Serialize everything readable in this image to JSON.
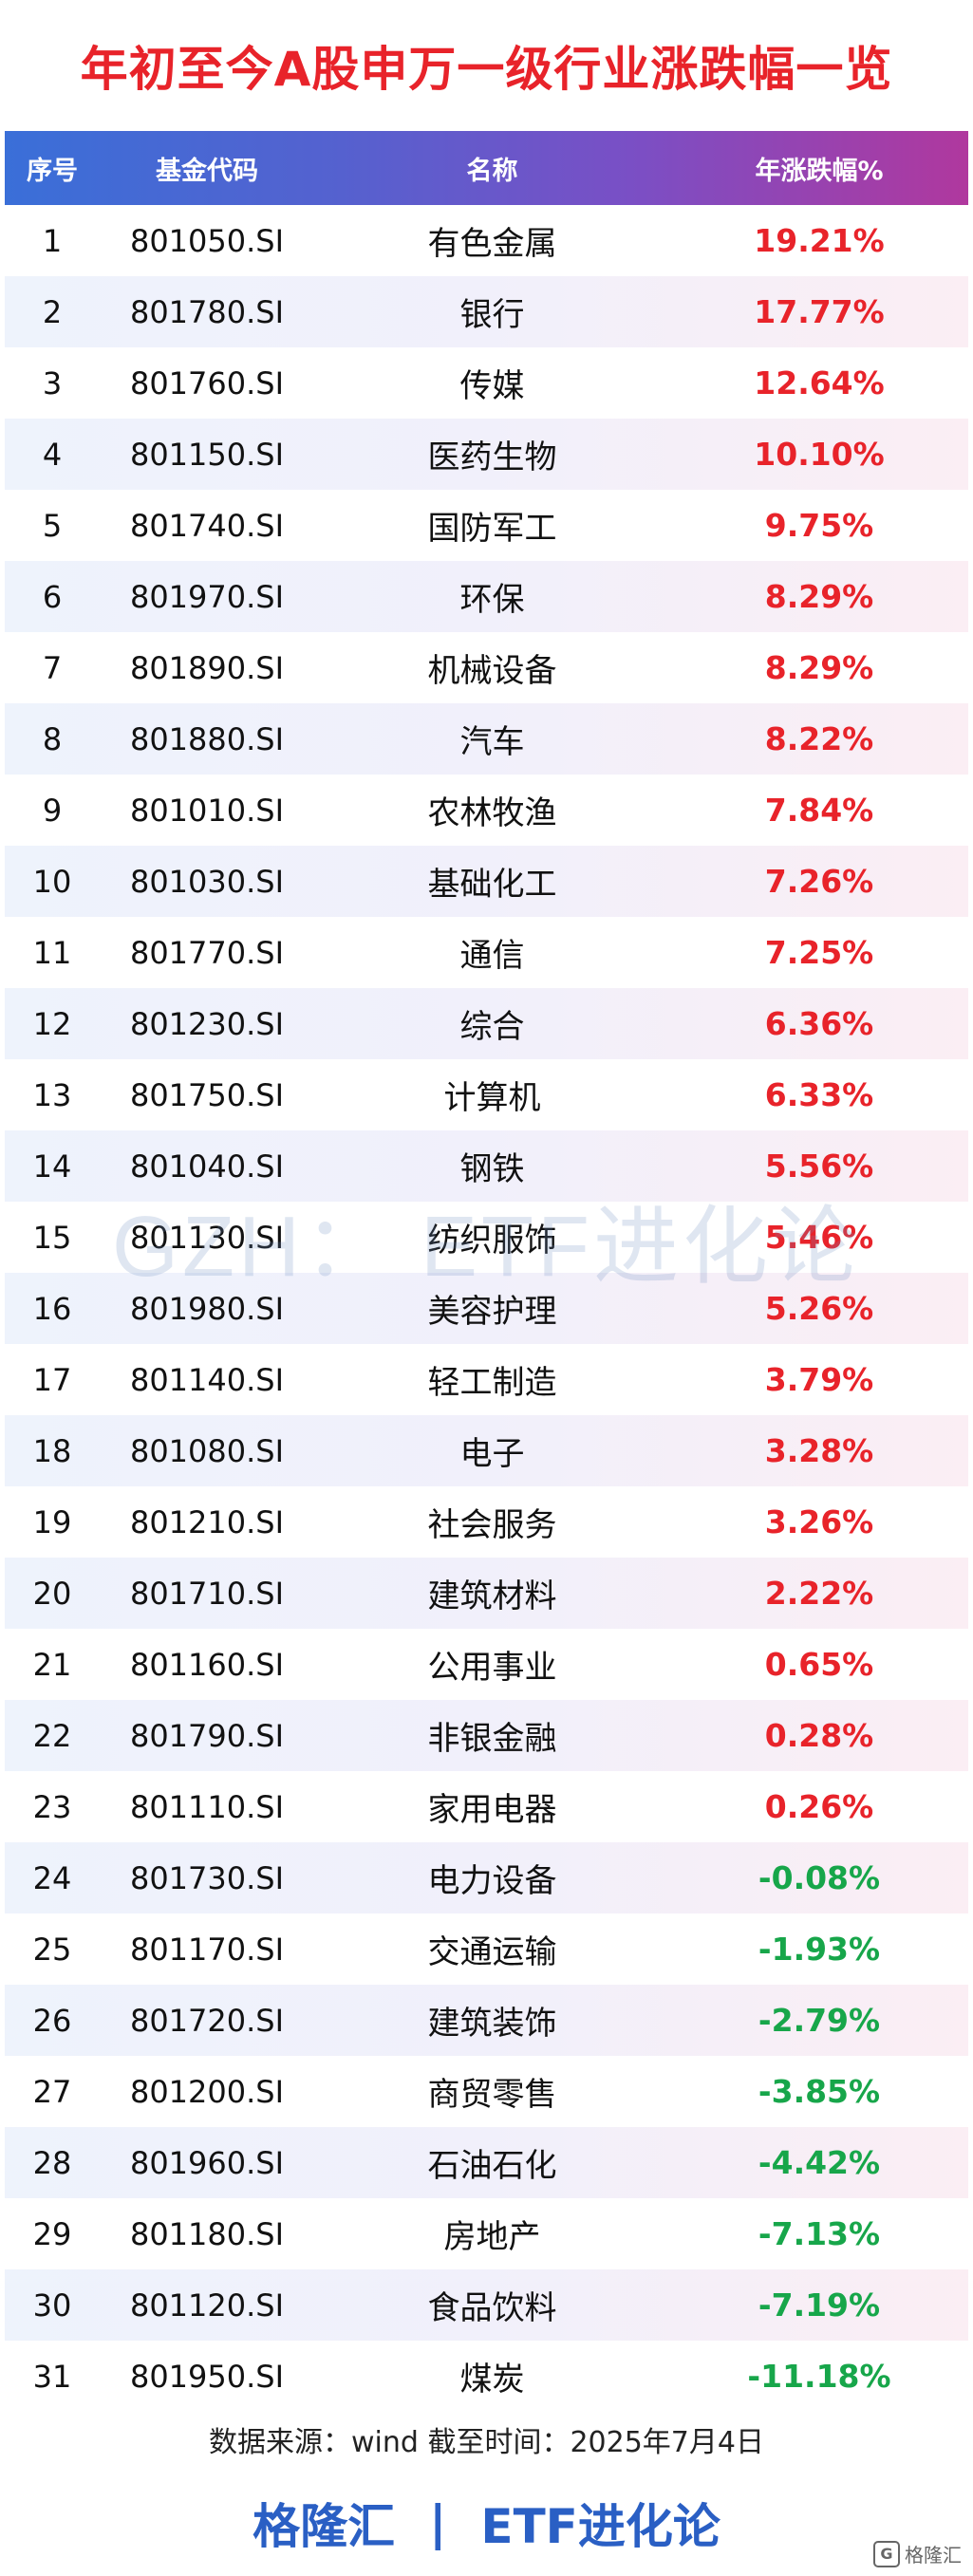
{
  "title": "年初至今A股申万一级行业涨跌幅一览",
  "headers": [
    "序号",
    "基金代码",
    "名称",
    "年涨跌幅%"
  ],
  "rows": [
    {
      "no": "1",
      "code": "801050.SI",
      "name": "有色金属",
      "change": "19.21%"
    },
    {
      "no": "2",
      "code": "801780.SI",
      "name": "银行",
      "change": "17.77%"
    },
    {
      "no": "3",
      "code": "801760.SI",
      "name": "传媒",
      "change": "12.64%"
    },
    {
      "no": "4",
      "code": "801150.SI",
      "name": "医药生物",
      "change": "10.10%"
    },
    {
      "no": "5",
      "code": "801740.SI",
      "name": "国防军工",
      "change": "9.75%"
    },
    {
      "no": "6",
      "code": "801970.SI",
      "name": "环保",
      "change": "8.29%"
    },
    {
      "no": "7",
      "code": "801890.SI",
      "name": "机械设备",
      "change": "8.29%"
    },
    {
      "no": "8",
      "code": "801880.SI",
      "name": "汽车",
      "change": "8.22%"
    },
    {
      "no": "9",
      "code": "801010.SI",
      "name": "农林牧渔",
      "change": "7.84%"
    },
    {
      "no": "10",
      "code": "801030.SI",
      "name": "基础化工",
      "change": "7.26%"
    },
    {
      "no": "11",
      "code": "801770.SI",
      "name": "通信",
      "change": "7.25%"
    },
    {
      "no": "12",
      "code": "801230.SI",
      "name": "综合",
      "change": "6.36%"
    },
    {
      "no": "13",
      "code": "801750.SI",
      "name": "计算机",
      "change": "6.33%"
    },
    {
      "no": "14",
      "code": "801040.SI",
      "name": "钢铁",
      "change": "5.56%"
    },
    {
      "no": "15",
      "code": "801130.SI",
      "name": "纺织服饰",
      "change": "5.46%"
    },
    {
      "no": "16",
      "code": "801980.SI",
      "name": "美容护理",
      "change": "5.26%"
    },
    {
      "no": "17",
      "code": "801140.SI",
      "name": "轻工制造",
      "change": "3.79%"
    },
    {
      "no": "18",
      "code": "801080.SI",
      "name": "电子",
      "change": "3.28%"
    },
    {
      "no": "19",
      "code": "801210.SI",
      "name": "社会服务",
      "change": "3.26%"
    },
    {
      "no": "20",
      "code": "801710.SI",
      "name": "建筑材料",
      "change": "2.22%"
    },
    {
      "no": "21",
      "code": "801160.SI",
      "name": "公用事业",
      "change": "0.65%"
    },
    {
      "no": "22",
      "code": "801790.SI",
      "name": "非银金融",
      "change": "0.28%"
    },
    {
      "no": "23",
      "code": "801110.SI",
      "name": "家用电器",
      "change": "0.26%"
    },
    {
      "no": "24",
      "code": "801730.SI",
      "name": "电力设备",
      "change": "-0.08%"
    },
    {
      "no": "25",
      "code": "801170.SI",
      "name": "交通运输",
      "change": "-1.93%"
    },
    {
      "no": "26",
      "code": "801720.SI",
      "name": "建筑装饰",
      "change": "-2.79%"
    },
    {
      "no": "27",
      "code": "801200.SI",
      "name": "商贸零售",
      "change": "-3.85%"
    },
    {
      "no": "28",
      "code": "801960.SI",
      "name": "石油石化",
      "change": "-4.42%"
    },
    {
      "no": "29",
      "code": "801180.SI",
      "name": "房地产",
      "change": "-7.13%"
    },
    {
      "no": "30",
      "code": "801120.SI",
      "name": "食品饮料",
      "change": "-7.19%"
    },
    {
      "no": "31",
      "code": "801950.SI",
      "name": "煤炭",
      "change": "-11.18%"
    }
  ],
  "watermark": "GZH： ETF进化论",
  "source": "数据来源：wind 截至时间：2025年7月4日",
  "footer": {
    "left": "格隆汇",
    "separator": "|",
    "right": "ETF进化论"
  },
  "logo": {
    "icon": "gelonghui-logo-icon",
    "glyph": "G",
    "text": "格隆汇"
  },
  "colors": {
    "positive": "#e8232a",
    "negative": "#17a64a",
    "title": "#e8232a",
    "footer": "#2a5fc4"
  }
}
